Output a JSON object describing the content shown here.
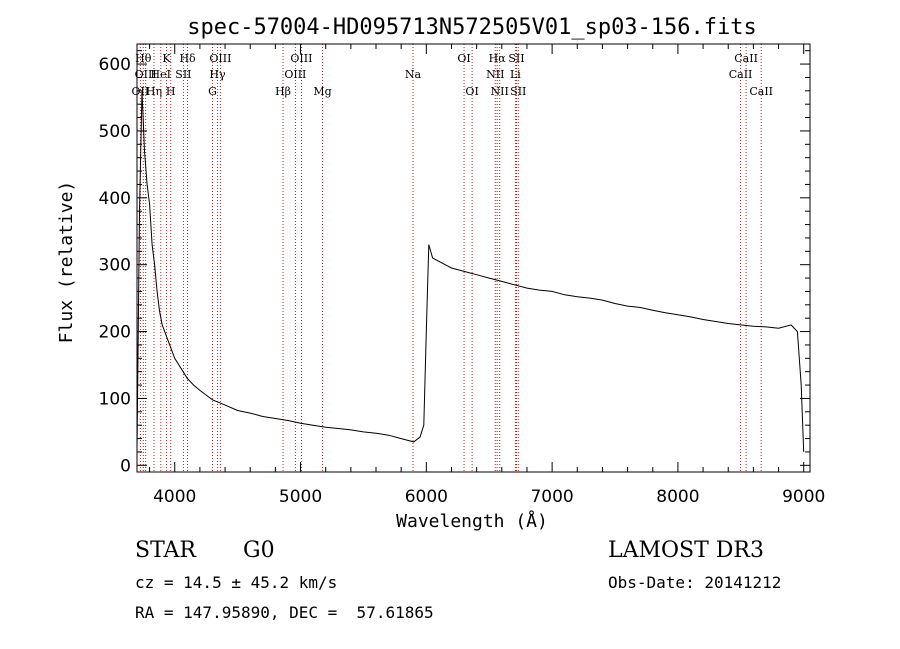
{
  "chart_data": {
    "type": "line",
    "title": "spec-57004-HD095713N572505V01_sp03-156.fits",
    "xlabel": "Wavelength (Å)",
    "ylabel": "Flux (relative)",
    "xlim": [
      3700,
      9050
    ],
    "ylim": [
      -10,
      630
    ],
    "xticks": [
      4000,
      5000,
      6000,
      7000,
      8000,
      9000
    ],
    "xtick_labels": [
      "4000",
      "5000",
      "6000",
      "7000",
      "8000",
      "9000"
    ],
    "yticks": [
      0,
      100,
      200,
      300,
      400,
      500,
      600
    ],
    "ytick_labels": [
      "0",
      "100",
      "200",
      "300",
      "400",
      "500",
      "600"
    ],
    "grid": false,
    "series": [
      {
        "name": "flux",
        "color": "#000000",
        "x": [
          3700,
          3720,
          3740,
          3760,
          3780,
          3800,
          3820,
          3840,
          3860,
          3880,
          3900,
          3920,
          3950,
          3980,
          4000,
          4050,
          4100,
          4150,
          4200,
          4250,
          4300,
          4350,
          4400,
          4500,
          4600,
          4700,
          4800,
          4900,
          5000,
          5100,
          5200,
          5300,
          5400,
          5500,
          5600,
          5700,
          5800,
          5900,
          5950,
          5980,
          6000,
          6020,
          6050,
          6100,
          6150,
          6200,
          6300,
          6400,
          6500,
          6600,
          6700,
          6800,
          6900,
          7000,
          7100,
          7200,
          7300,
          7400,
          7500,
          7600,
          7700,
          7800,
          7900,
          8000,
          8100,
          8200,
          8300,
          8400,
          8500,
          8600,
          8700,
          8800,
          8900,
          8950,
          8980,
          9000
        ],
        "y": [
          20,
          380,
          560,
          470,
          420,
          390,
          330,
          300,
          260,
          230,
          210,
          200,
          185,
          170,
          160,
          145,
          130,
          120,
          112,
          105,
          98,
          94,
          90,
          82,
          78,
          73,
          70,
          67,
          63,
          60,
          57,
          55,
          53,
          50,
          48,
          45,
          40,
          35,
          42,
          60,
          200,
          330,
          310,
          305,
          300,
          295,
          290,
          285,
          280,
          275,
          270,
          265,
          262,
          260,
          255,
          252,
          250,
          247,
          242,
          238,
          236,
          232,
          228,
          225,
          222,
          218,
          215,
          212,
          210,
          208,
          207,
          205,
          210,
          200,
          120,
          20
        ]
      }
    ],
    "lines": [
      {
        "label": "OII",
        "x": 3727,
        "row": 2
      },
      {
        "label": "Hθ",
        "x": 3750,
        "row": 0
      },
      {
        "label": "OIII",
        "x": 3769,
        "row": 1
      },
      {
        "label": "Hη",
        "x": 3835,
        "row": 2
      },
      {
        "label": "HeI",
        "x": 3889,
        "row": 1
      },
      {
        "label": "K",
        "x": 3934,
        "row": 0
      },
      {
        "label": "H",
        "x": 3968,
        "row": 2
      },
      {
        "label": "SII",
        "x": 4069,
        "row": 1
      },
      {
        "label": "Hδ",
        "x": 4102,
        "row": 0
      },
      {
        "label": "G",
        "x": 4300,
        "row": 2
      },
      {
        "label": "Hγ",
        "x": 4340,
        "row": 1
      },
      {
        "label": "OIII",
        "x": 4363,
        "row": 0
      },
      {
        "label": "Hβ",
        "x": 4861,
        "row": 2
      },
      {
        "label": "OIII",
        "x": 4959,
        "row": 1
      },
      {
        "label": "OIII",
        "x": 5007,
        "row": 0
      },
      {
        "label": "Mg",
        "x": 5175,
        "row": 2
      },
      {
        "label": "Na",
        "x": 5894,
        "row": 1
      },
      {
        "label": "OI",
        "x": 6300,
        "row": 0
      },
      {
        "label": "OI",
        "x": 6364,
        "row": 2
      },
      {
        "label": "NII",
        "x": 6548,
        "row": 1
      },
      {
        "label": "Hα",
        "x": 6563,
        "row": 0
      },
      {
        "label": "NII",
        "x": 6583,
        "row": 2
      },
      {
        "label": "Li",
        "x": 6708,
        "row": 1
      },
      {
        "label": "SII",
        "x": 6717,
        "row": 0
      },
      {
        "label": "SII",
        "x": 6731,
        "row": 2
      },
      {
        "label": "CaII",
        "x": 8498,
        "row": 1
      },
      {
        "label": "CaII",
        "x": 8542,
        "row": 0
      },
      {
        "label": "CaII",
        "x": 8662,
        "row": 2
      }
    ]
  },
  "info": {
    "class": "STAR",
    "subclass": "G0",
    "survey": "LAMOST DR3",
    "cz": "cz = 14.5 ± 45.2 km/s",
    "obs_date": "Obs-Date: 20141212",
    "coords": "RA = 147.95890, DEC =  57.61865"
  }
}
